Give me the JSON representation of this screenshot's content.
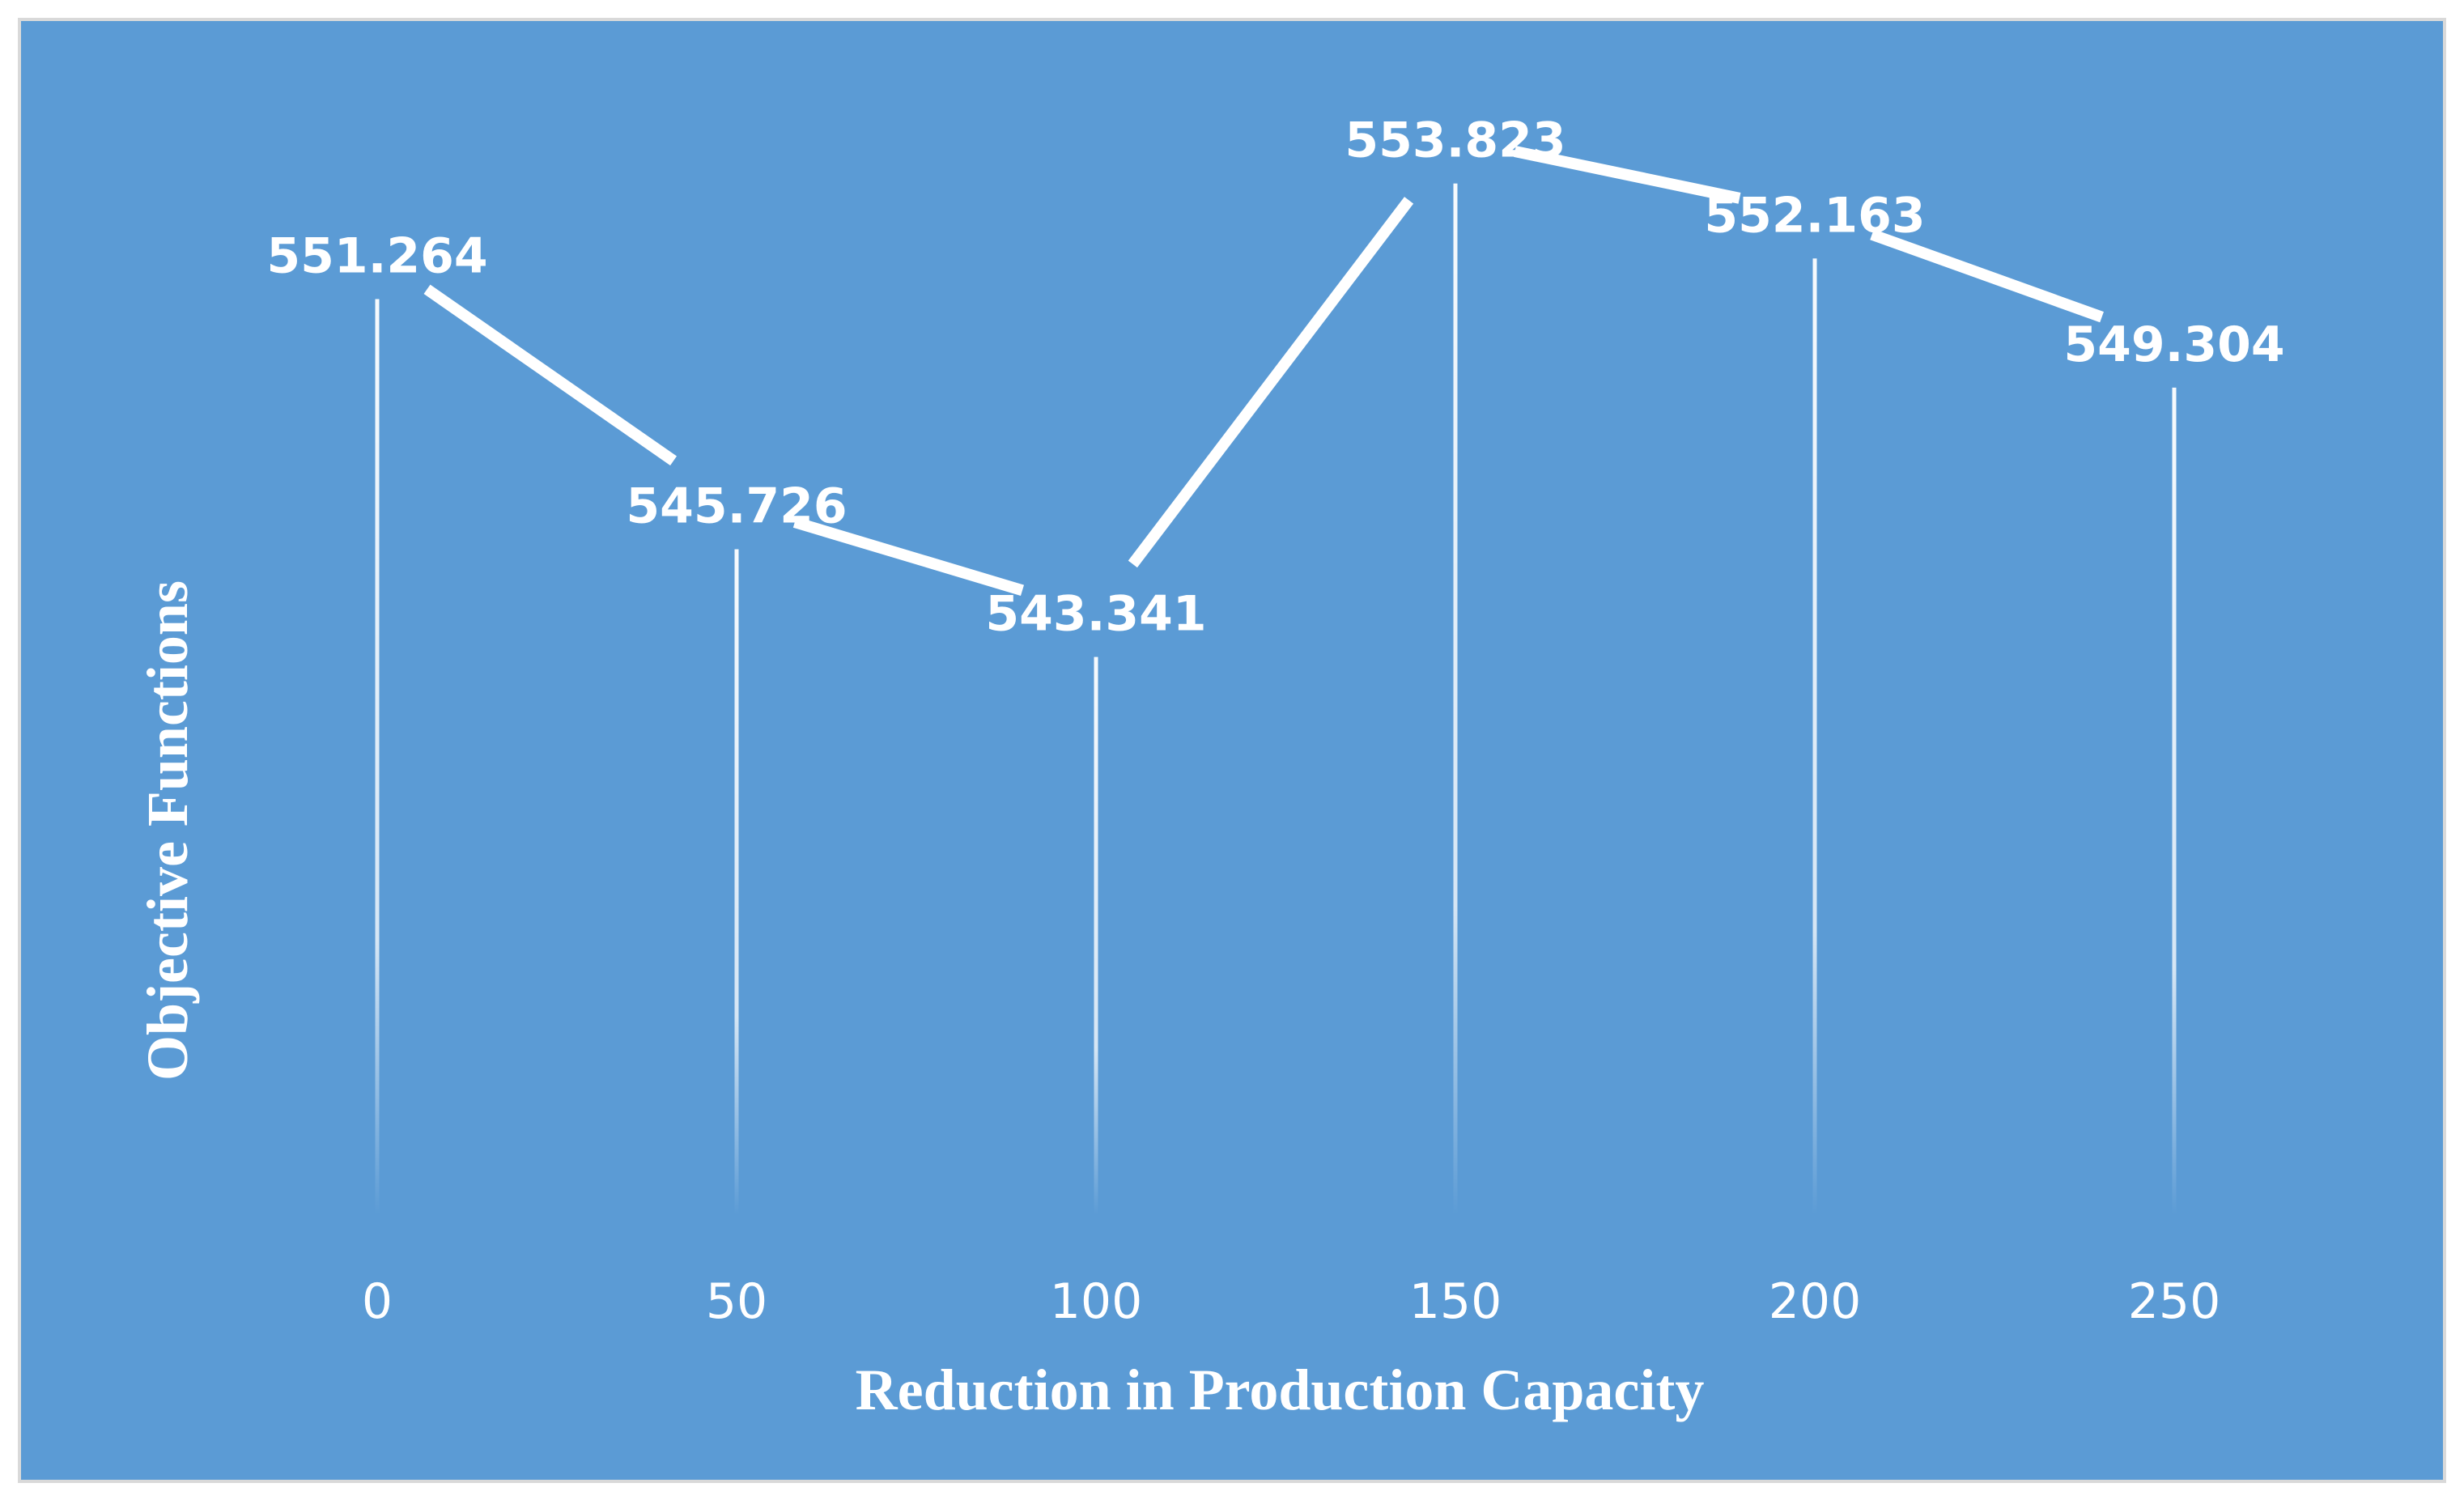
{
  "chart_data": {
    "type": "line",
    "title": "",
    "xlabel": "Reduction in Production Capacity",
    "ylabel": "Objective Functions",
    "x": [
      0,
      50,
      100,
      150,
      200,
      250
    ],
    "categories": [
      "0",
      "50",
      "100",
      "150",
      "200",
      "250"
    ],
    "series": [
      {
        "name": "Objective Functions",
        "values": [
          551.264,
          545.726,
          543.341,
          553.823,
          552.163,
          549.304
        ]
      }
    ],
    "data_labels": [
      "551.264",
      "545.726",
      "543.341",
      "553.823",
      "552.163",
      "549.304"
    ],
    "ylim": [
      530,
      555
    ],
    "grid": false,
    "drop_lines": true,
    "colors": {
      "background": "#5b9bd5",
      "line": "#ffffff",
      "border": "#d9d9d9"
    }
  }
}
